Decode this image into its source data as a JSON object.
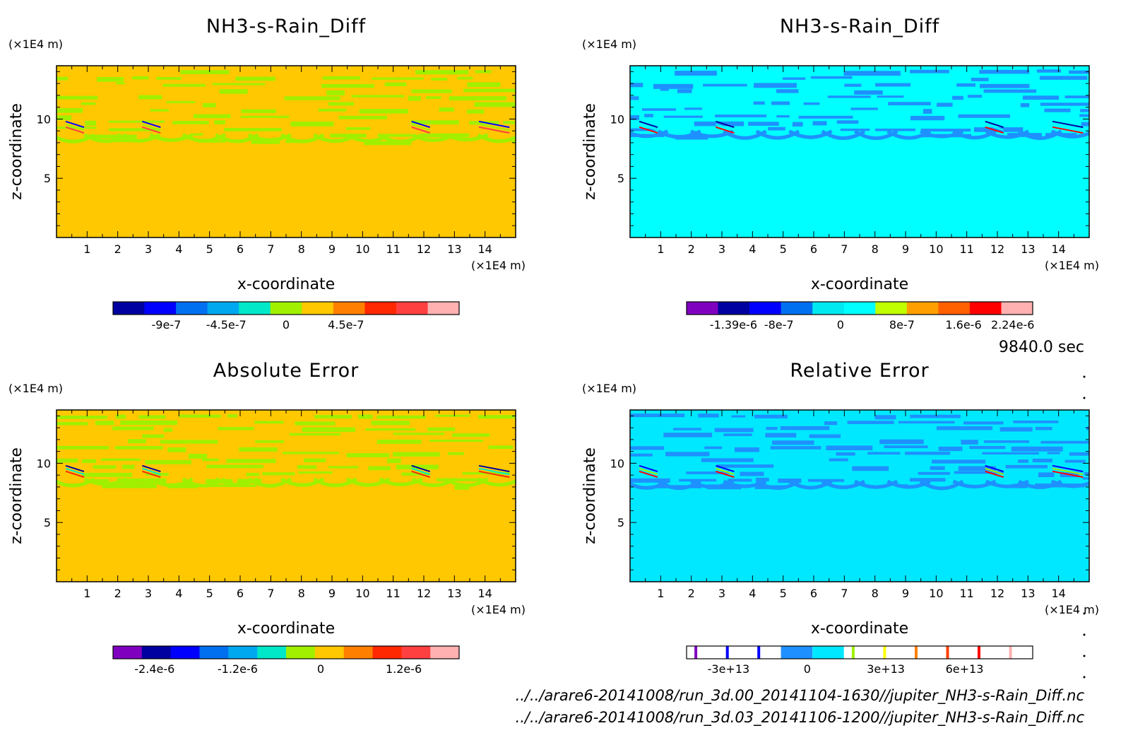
{
  "time_label": "9840.0 sec",
  "footer_lines": [
    "../../arare6-20141008/run_3d.00_20141104-1630//jupiter_NH3-s-Rain_Diff.nc",
    "../../arare6-20141008/run_3d.03_20141106-1200//jupiter_NH3-s-Rain_Diff.nc"
  ],
  "chart_data": [
    {
      "type": "heatmap",
      "title": "NH3-s-Rain_Diff",
      "xlabel": "x-coordinate",
      "ylabel": "z-coordinate",
      "x_unit": "(×1E4 m)",
      "y_unit": "(×1E4 m)",
      "xlim": [
        0,
        15
      ],
      "ylim": [
        0,
        14.5
      ],
      "xticks": [
        1,
        2,
        3,
        4,
        5,
        6,
        7,
        8,
        9,
        10,
        11,
        12,
        13,
        14
      ],
      "yticks": [
        5,
        10
      ],
      "background_color": "#ffc800",
      "pattern_color": "#a0f000",
      "pattern_top": 14.2,
      "pattern_bottom": 8.2,
      "colorbar": {
        "colors": [
          "#0000a0",
          "#0000ff",
          "#0070f0",
          "#00a8f0",
          "#00e8c8",
          "#a0f000",
          "#ffc800",
          "#ff8000",
          "#ff2800",
          "#ff4040",
          "#ffb0b0"
        ],
        "tick_labels": [
          "-9e-7",
          "-4.5e-7",
          "0",
          "4.5e-7"
        ],
        "tick_values": [
          -9e-07,
          -4.5e-07,
          0,
          4.5e-07
        ],
        "range": [
          -1.3e-06,
          1.3e-06
        ]
      }
    },
    {
      "type": "heatmap",
      "title": "NH3-s-Rain_Diff",
      "xlabel": "x-coordinate",
      "ylabel": "z-coordinate",
      "x_unit": "(×1E4 m)",
      "y_unit": "(×1E4 m)",
      "xlim": [
        0,
        15
      ],
      "ylim": [
        0,
        14.5
      ],
      "xticks": [
        1,
        2,
        3,
        4,
        5,
        6,
        7,
        8,
        9,
        10,
        11,
        12,
        13,
        14
      ],
      "yticks": [
        5,
        10
      ],
      "background_color": "#00ffff",
      "pattern_color": "#1e90ff",
      "pattern_top": 14.2,
      "pattern_bottom": 8.5,
      "colorbar": {
        "colors": [
          "#8000c0",
          "#0000a0",
          "#0000ff",
          "#0070f0",
          "#00e8f0",
          "#00ffff",
          "#c0ff00",
          "#ffa000",
          "#ff6000",
          "#ff0000",
          "#ffb0b0"
        ],
        "tick_labels": [
          "-1.39e-6",
          "-8e-7",
          "0",
          "8e-7",
          "1.6e-6",
          "2.24e-6"
        ],
        "tick_values": [
          -1.39e-06,
          -8e-07,
          0,
          8e-07,
          1.6e-06,
          2.24e-06
        ],
        "range": [
          -2e-06,
          2.5e-06
        ]
      }
    },
    {
      "type": "heatmap",
      "title": "Absolute Error",
      "xlabel": "x-coordinate",
      "ylabel": "z-coordinate",
      "x_unit": "(×1E4 m)",
      "y_unit": "(×1E4 m)",
      "xlim": [
        0,
        15
      ],
      "ylim": [
        0,
        14.5
      ],
      "xticks": [
        1,
        2,
        3,
        4,
        5,
        6,
        7,
        8,
        9,
        10,
        11,
        12,
        13,
        14
      ],
      "yticks": [
        5,
        10
      ],
      "background_color": "#ffc800",
      "pattern_color": "#a0f000",
      "pattern_top": 14.2,
      "pattern_bottom": 8.2,
      "colorbar": {
        "colors": [
          "#8000c0",
          "#0000a0",
          "#0000ff",
          "#0070f0",
          "#00a8f0",
          "#00e8c8",
          "#a0f000",
          "#ffc800",
          "#ff8000",
          "#ff2800",
          "#ff4040",
          "#ffb0b0"
        ],
        "tick_labels": [
          "-2.4e-6",
          "-1.2e-6",
          "0",
          "1.2e-6"
        ],
        "tick_values": [
          -2.4e-06,
          -1.2e-06,
          0,
          1.2e-06
        ],
        "range": [
          -3e-06,
          2e-06
        ]
      }
    },
    {
      "type": "heatmap",
      "title": "Relative Error",
      "xlabel": "x-coordinate",
      "ylabel": "z-coordinate",
      "x_unit": "(×1E4 m)",
      "y_unit": "(×1E4 m)",
      "xlim": [
        0,
        15
      ],
      "ylim": [
        0,
        14.5
      ],
      "xticks": [
        1,
        2,
        3,
        4,
        5,
        6,
        7,
        8,
        9,
        10,
        11,
        12,
        13,
        14
      ],
      "yticks": [
        5,
        10
      ],
      "background_color": "#00e8ff",
      "pattern_color": "#1e90ff",
      "pattern_top": 14.2,
      "pattern_bottom": 8.0,
      "colorbar": {
        "sparse": true,
        "colors": [
          "#8000c0",
          "#0000ff",
          "#0000ff",
          "#1e90ff",
          "#00e8ff",
          "#a0f000",
          "#ffff00",
          "#ff8000",
          "#ff4000",
          "#ff0000",
          "#ffb0b0"
        ],
        "tick_labels": [
          "-3e+13",
          "0",
          "3e+13",
          "6e+13"
        ],
        "tick_values": [
          -30000000000000.0,
          0,
          30000000000000.0,
          60000000000000.0
        ],
        "range": [
          -46000000000000.0,
          86000000000000.0
        ]
      }
    }
  ]
}
